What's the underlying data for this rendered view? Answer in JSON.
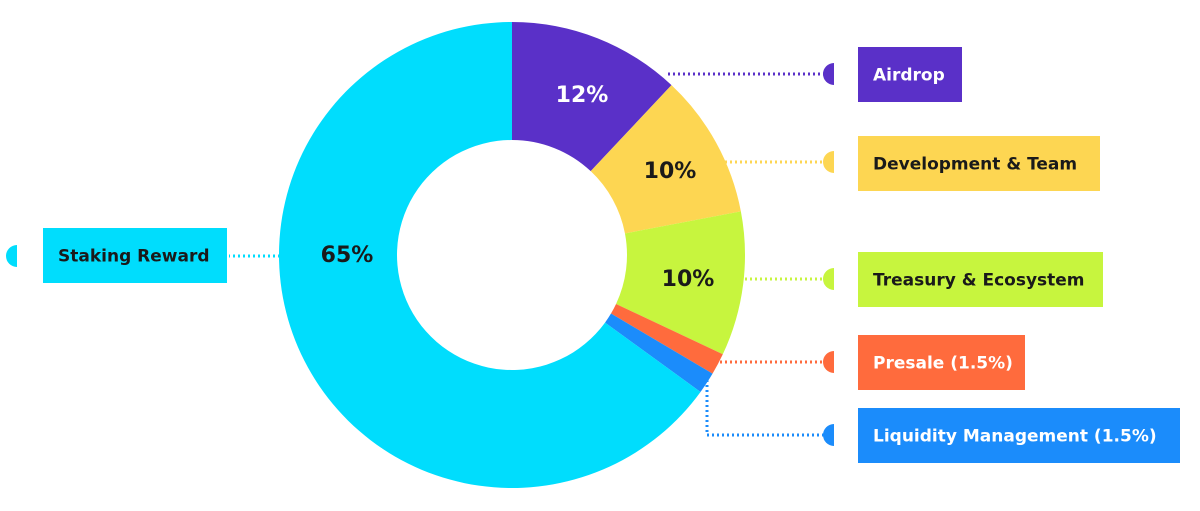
{
  "chart_data": {
    "type": "donut",
    "categories": [
      "Airdrop",
      "Development & Team",
      "Treasury & Ecosystem",
      "Presale (1.5%)",
      "Liquidity Management (1.5%)",
      "Staking Reward"
    ],
    "values": [
      12,
      10,
      10,
      1.5,
      1.5,
      65
    ],
    "value_labels": [
      "12%",
      "10%",
      "10%",
      null,
      null,
      "65%"
    ],
    "colors": [
      "#5a30c8",
      "#fdd652",
      "#c7f53e",
      "#ff6b3d",
      "#1b8cfb",
      "#00ddfd"
    ]
  }
}
